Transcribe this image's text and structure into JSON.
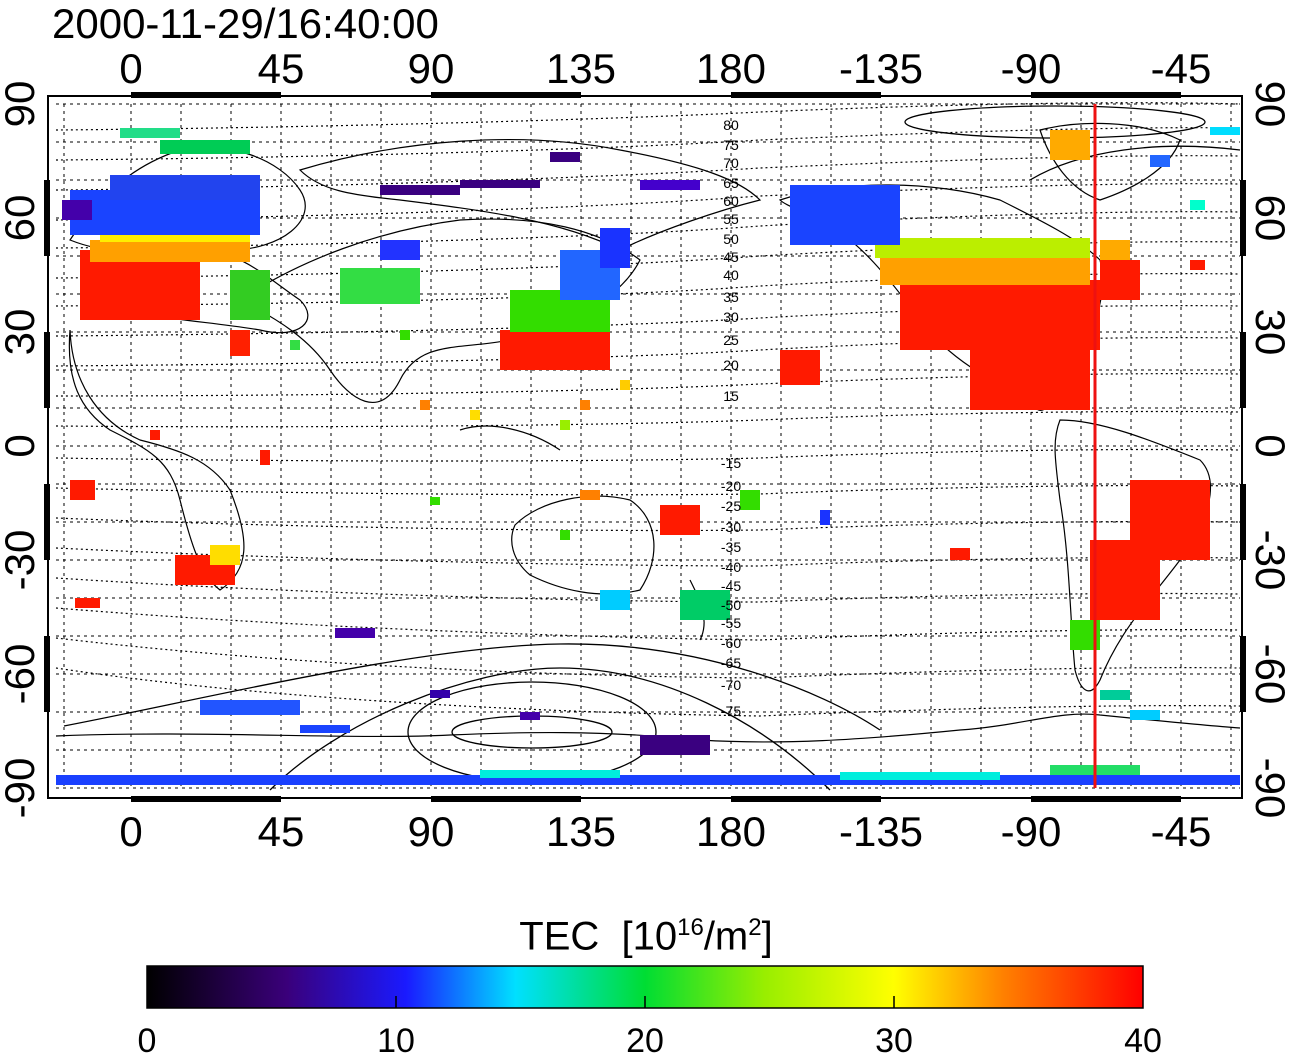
{
  "title": "2000-11-29/16:40:00",
  "map": {
    "top_axis_labels": [
      "0",
      "45",
      "90",
      "135",
      "180",
      "-135",
      "-90",
      "-45"
    ],
    "bottom_axis_labels": [
      "0",
      "45",
      "90",
      "135",
      "180",
      "-135",
      "-90",
      "-45"
    ],
    "left_axis_labels": [
      "90",
      "60",
      "30",
      "0",
      "-30",
      "-60",
      "-90"
    ],
    "right_axis_labels": [
      "90",
      "60",
      "30",
      "0",
      "-30",
      "-60",
      "-90"
    ],
    "contour_labels_north": [
      "80",
      "75",
      "70",
      "65",
      "60",
      "55",
      "50",
      "45",
      "40",
      "35",
      "30",
      "25",
      "20",
      "15"
    ],
    "contour_labels_south": [
      "-15",
      "-20",
      "-25",
      "-30",
      "-35",
      "-40",
      "-45",
      "-50",
      "-55",
      "-60",
      "-65",
      "-70",
      "-75"
    ],
    "marker_line_color": "#ee1111"
  },
  "colorbar": {
    "title": "TEC",
    "unit_prefix": "[10",
    "unit_exp": "16",
    "unit_mid": "/m",
    "unit_exp2": "2",
    "unit_suffix": "]",
    "tick_labels": [
      "0",
      "10",
      "20",
      "30",
      "40"
    ],
    "range": [
      0,
      40
    ],
    "colormap": [
      "#000000",
      "#3a007a",
      "#1a1aff",
      "#00e0ff",
      "#00dd33",
      "#ffff00",
      "#ff8000",
      "#ff0000"
    ]
  }
}
